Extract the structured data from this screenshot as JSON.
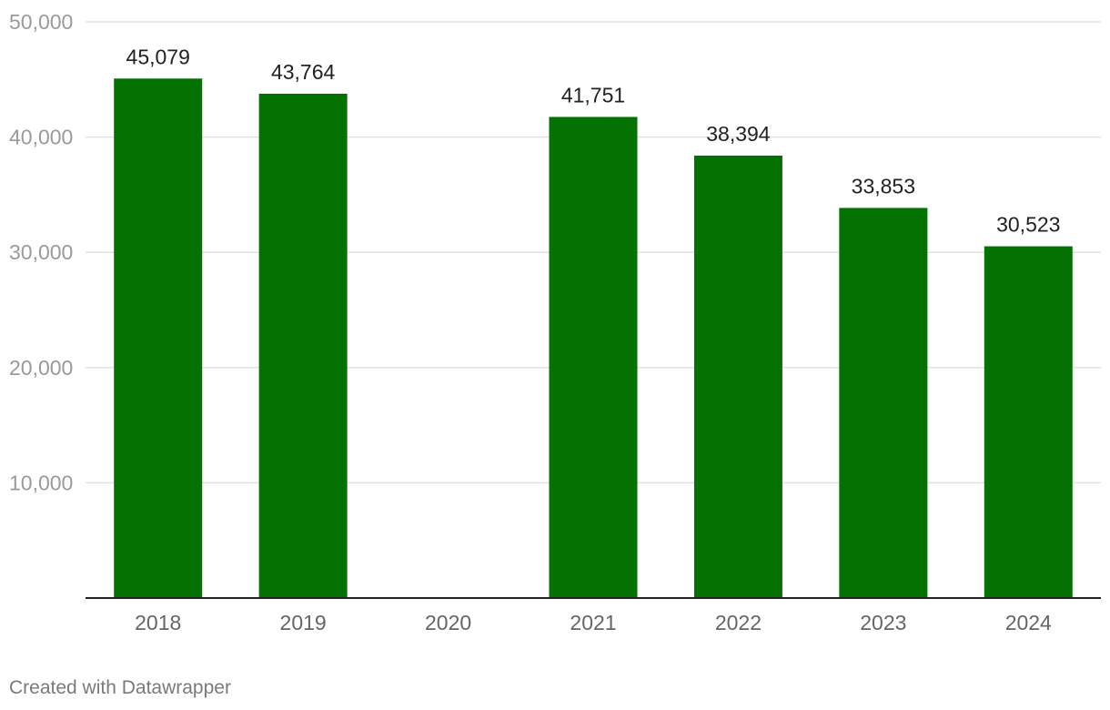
{
  "chart_data": {
    "type": "bar",
    "title": "",
    "xlabel": "",
    "ylabel": "",
    "categories": [
      "2018",
      "2019",
      "2020",
      "2021",
      "2022",
      "2023",
      "2024"
    ],
    "values": [
      45079,
      43764,
      null,
      41751,
      38394,
      33853,
      30523
    ],
    "value_labels": [
      "45,079",
      "43,764",
      "",
      "41,751",
      "38,394",
      "33,853",
      "30,523"
    ],
    "ylim": [
      0,
      50000
    ],
    "yticks": [
      10000,
      20000,
      30000,
      40000,
      50000
    ],
    "ytick_labels": [
      "10,000",
      "20,000",
      "30,000",
      "40,000",
      "50,000"
    ],
    "grid": true,
    "bar_color": "#047202"
  },
  "footer": {
    "credit": "Created with Datawrapper"
  }
}
